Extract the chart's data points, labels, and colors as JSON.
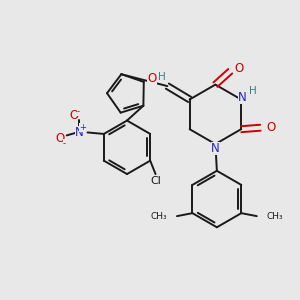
{
  "background_color": "#e8e8e8",
  "bond_color": "#1a1a1a",
  "oxygen_color": "#cc0000",
  "nitrogen_color": "#2222cc",
  "h_color": "#3a8080",
  "figsize": [
    3.0,
    3.0
  ],
  "dpi": 100,
  "xlim": [
    0,
    10
  ],
  "ylim": [
    0,
    10
  ]
}
